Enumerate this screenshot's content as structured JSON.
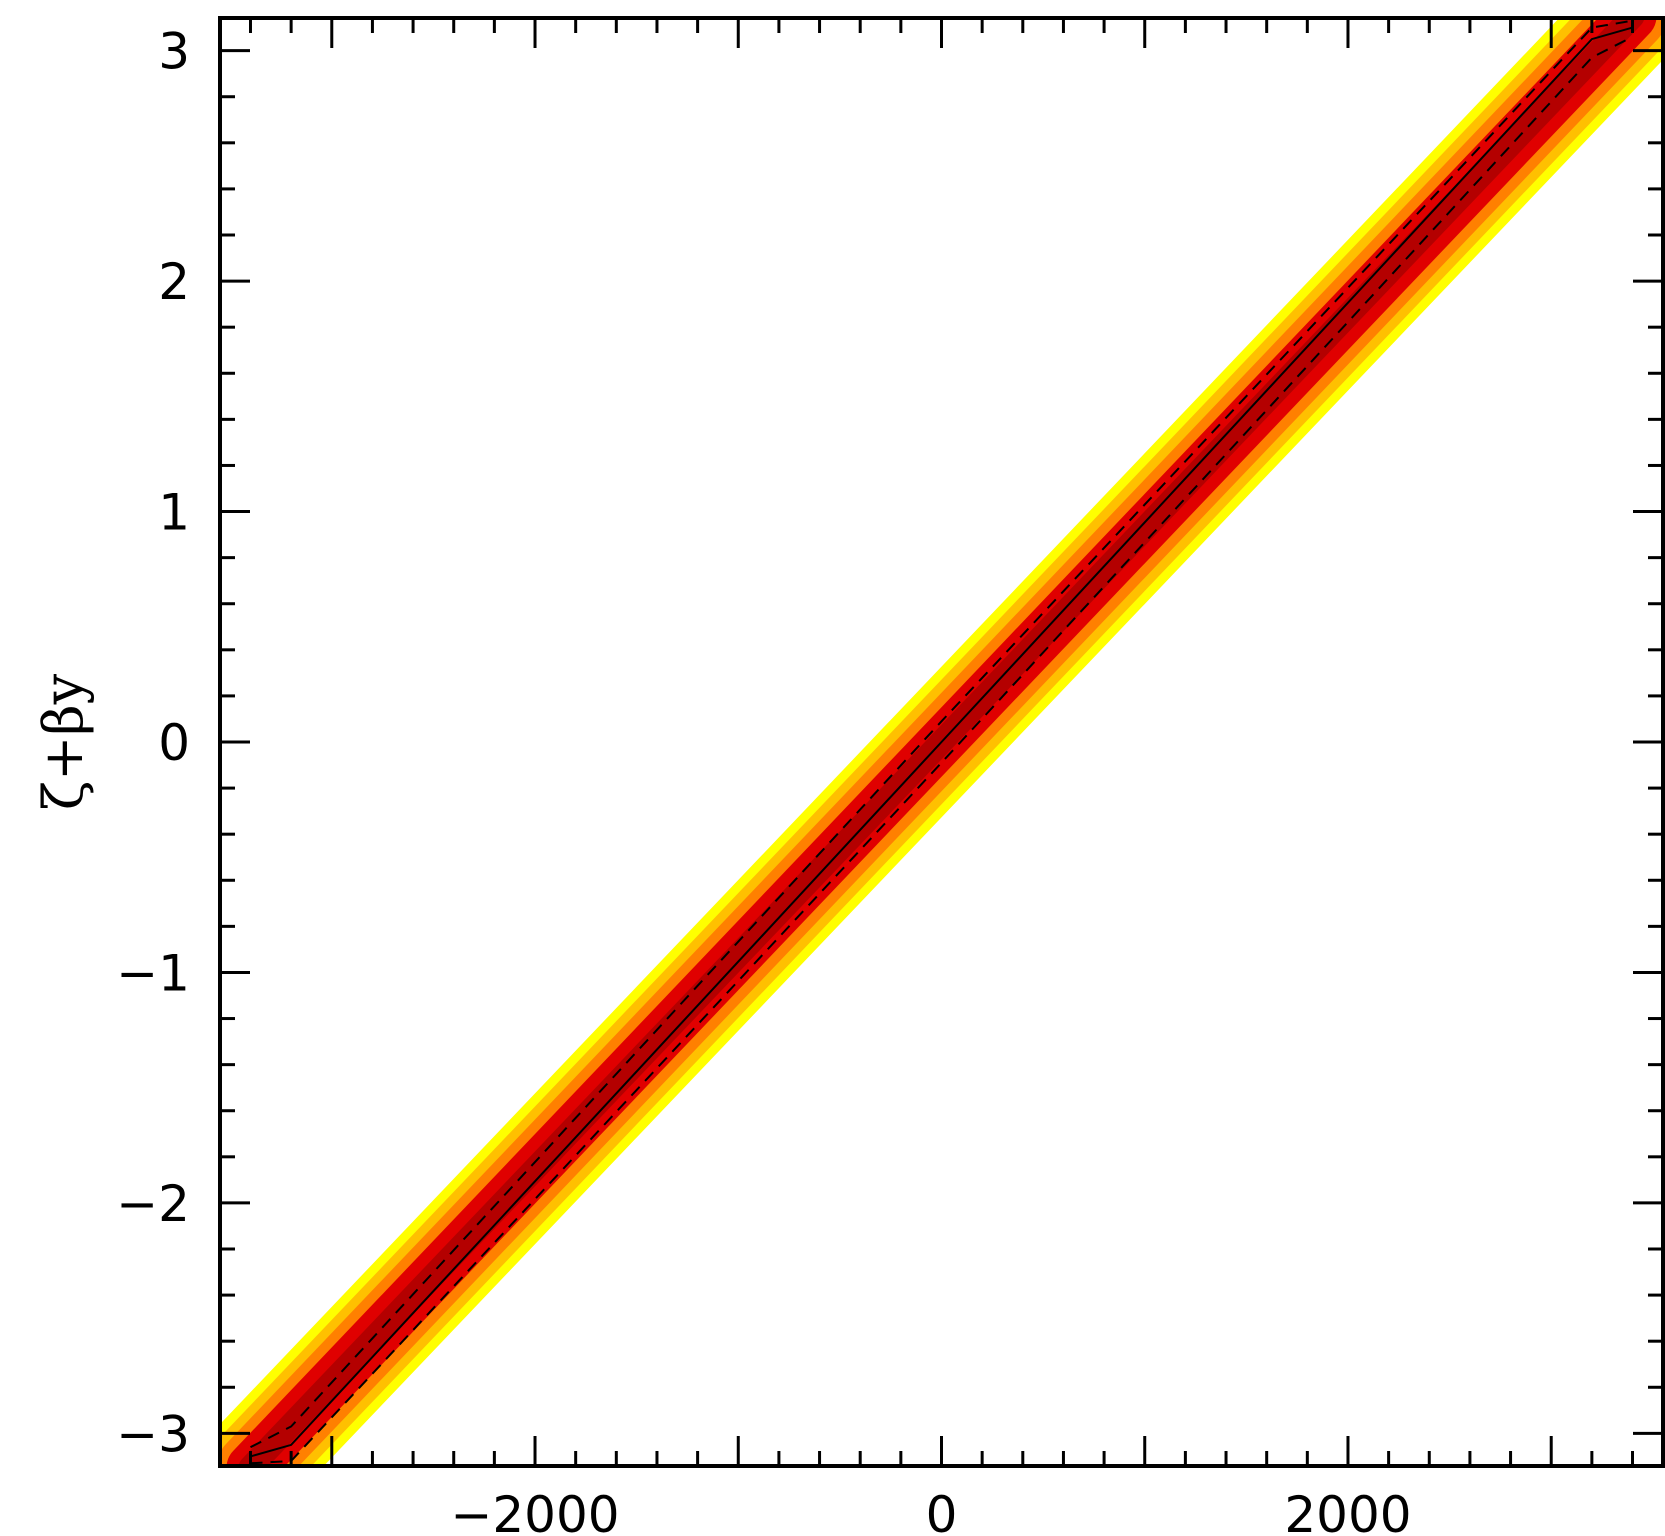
{
  "chart_data": {
    "type": "heatmap",
    "title": "",
    "xlabel": "",
    "ylabel": "ζ+βy",
    "xlim": [
      -3550,
      3550
    ],
    "ylim": [
      -3.1416,
      3.1416
    ],
    "x_tick_labels": [
      "−2000",
      "0",
      "2000"
    ],
    "x_tick_values": [
      -2000,
      0,
      2000
    ],
    "y_tick_labels": [
      "3",
      "2",
      "1",
      "0",
      "−1",
      "−2",
      "−3"
    ],
    "y_tick_values": [
      3,
      2,
      1,
      0,
      -1,
      -2,
      -3
    ],
    "grid": false,
    "colormap": [
      "#ffffff",
      "#ffff00",
      "#ff8000",
      "#e00000",
      "#800000"
    ],
    "density_band": {
      "slope_per_unit_x": 0.000926,
      "intercept": 0,
      "x_range": [
        -3400,
        3400
      ]
    },
    "contour_lines": [
      {
        "style": "solid",
        "x": [
          -3400,
          -3200,
          0,
          3200,
          3400
        ],
        "y": [
          -3.1,
          -3.05,
          0,
          3.05,
          3.1
        ]
      },
      {
        "style": "dashed",
        "x": [
          -3400,
          -3200,
          0,
          3200,
          3400
        ],
        "y": [
          -3.06,
          -2.97,
          0.09,
          3.1,
          3.13
        ]
      },
      {
        "style": "dashed",
        "x": [
          -3400,
          -3200,
          0,
          3200,
          3400
        ],
        "y": [
          -3.13,
          -3.12,
          -0.09,
          2.97,
          3.06
        ]
      }
    ]
  }
}
